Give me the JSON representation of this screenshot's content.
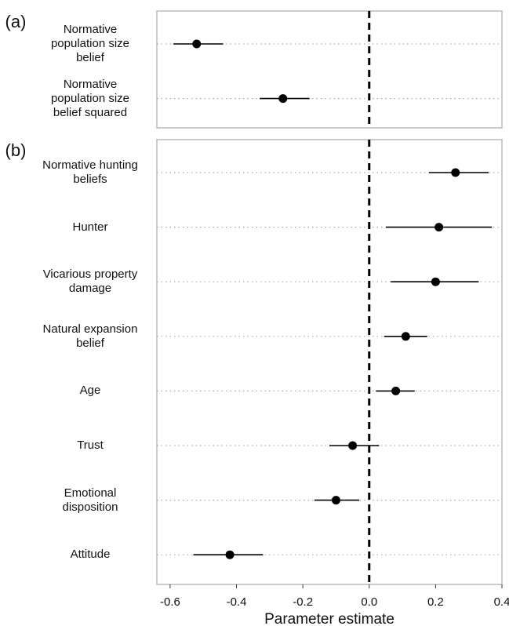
{
  "chart_data": [
    {
      "type": "forest",
      "panel_label": "(a)",
      "categories": [
        "Normative\npopulation size\nbelief",
        "Normative\npopulation size\nbelief squared"
      ],
      "values": [
        -0.52,
        -0.26
      ],
      "lower": [
        -0.59,
        -0.33
      ],
      "upper": [
        -0.44,
        -0.18
      ],
      "color": "#000000",
      "xlim": [
        -0.64,
        0.4
      ],
      "reference_line": 0
    },
    {
      "type": "forest",
      "panel_label": "(b)",
      "categories": [
        "Normative hunting\nbeliefs",
        "Hunter",
        "Vicarious property\ndamage",
        "Natural expansion\nbelief",
        "Age",
        "Trust",
        "Emotional\ndisposition",
        "Attitude"
      ],
      "values": [
        0.26,
        0.21,
        0.2,
        0.11,
        0.08,
        -0.05,
        -0.1,
        -0.42
      ],
      "lower": [
        0.18,
        0.05,
        0.065,
        0.045,
        0.02,
        -0.12,
        -0.165,
        -0.53
      ],
      "upper": [
        0.36,
        0.37,
        0.33,
        0.175,
        0.137,
        0.03,
        -0.03,
        -0.32
      ],
      "color": "#000000",
      "xlim": [
        -0.64,
        0.4
      ],
      "reference_line": 0,
      "xticks": [
        -0.6,
        -0.4,
        -0.2,
        {
          "value": 0,
          "label": "0.0"
        },
        0.2,
        0.4
      ],
      "xlabel": "Parameter estimate"
    }
  ]
}
